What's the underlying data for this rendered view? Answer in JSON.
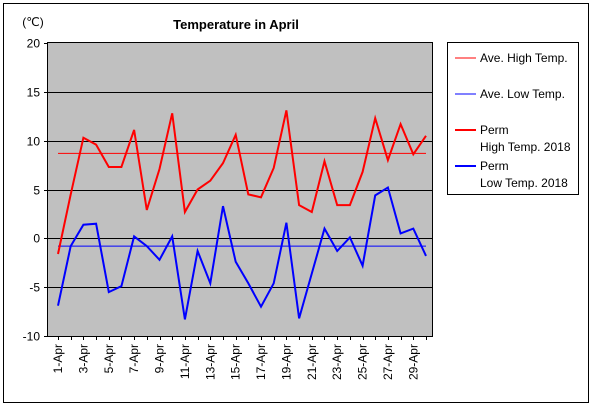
{
  "chart_data": {
    "type": "line",
    "title": "Temperature in April",
    "unit_label": "(℃)",
    "ylim": [
      -10,
      20
    ],
    "y_ticks": [
      20,
      15,
      10,
      5,
      0,
      -5,
      -10
    ],
    "x_tick_labels": [
      "1-Apr",
      "3-Apr",
      "5-Apr",
      "7-Apr",
      "9-Apr",
      "11-Apr",
      "13-Apr",
      "15-Apr",
      "17-Apr",
      "19-Apr",
      "21-Apr",
      "23-Apr",
      "25-Apr",
      "27-Apr",
      "29-Apr"
    ],
    "days": [
      1,
      2,
      3,
      4,
      5,
      6,
      7,
      8,
      9,
      10,
      11,
      12,
      13,
      14,
      15,
      16,
      17,
      18,
      19,
      20,
      21,
      22,
      23,
      24,
      25,
      26,
      27,
      28,
      29,
      30
    ],
    "grid": true,
    "plot_background": "#c0c0c0",
    "legend_position": "right",
    "reference_lines": [
      {
        "name": "Ave. High Temp.",
        "value": 8.7,
        "color": "#ff0000"
      },
      {
        "name": "Ave. Low Temp.",
        "value": -0.8,
        "color": "#0000ff"
      }
    ],
    "series": [
      {
        "name_line1": "Perm",
        "name_line2": "High Temp. 2018",
        "color": "#ff0000",
        "values": [
          -1.6,
          4.5,
          10.3,
          9.6,
          7.3,
          7.3,
          11.1,
          2.9,
          7.1,
          12.8,
          2.7,
          5.0,
          5.9,
          7.7,
          10.6,
          4.5,
          4.2,
          7.2,
          13.1,
          3.4,
          2.7,
          7.9,
          3.4,
          3.4,
          6.8,
          12.3,
          8.0,
          11.7,
          8.6,
          10.5
        ]
      },
      {
        "name_line1": "Perm",
        "name_line2": "Low Temp. 2018",
        "color": "#0000ff",
        "values": [
          -6.9,
          -0.8,
          1.4,
          1.5,
          -5.5,
          -4.9,
          0.2,
          -0.8,
          -2.2,
          0.2,
          -8.3,
          -1.3,
          -4.6,
          3.3,
          -2.4,
          -4.6,
          -7.0,
          -4.6,
          1.6,
          -8.2,
          -3.6,
          1.0,
          -1.3,
          0.1,
          -2.8,
          4.4,
          5.2,
          0.5,
          1.0,
          -1.8
        ]
      }
    ]
  }
}
